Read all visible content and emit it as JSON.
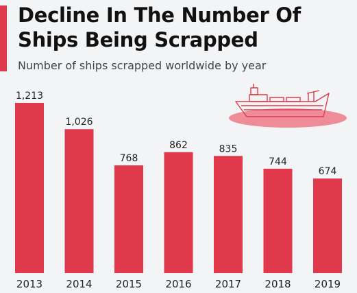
{
  "header": {
    "title": "Decline In The Number Of Ships Being Scrapped",
    "subtitle": "Number of ships scrapped worldwide by year"
  },
  "colors": {
    "bar": "#e0394b",
    "accent": "#e0394b",
    "ship_water": "#ee8d98",
    "background": "#f2f4f6"
  },
  "illustration": {
    "icon": "ship-icon"
  },
  "chart_data": {
    "type": "bar",
    "title": "Decline In The Number Of Ships Being Scrapped",
    "subtitle": "Number of ships scrapped worldwide by year",
    "categories": [
      "2013",
      "2014",
      "2015",
      "2016",
      "2017",
      "2018",
      "2019"
    ],
    "values": [
      1213,
      1026,
      768,
      862,
      835,
      744,
      674
    ],
    "value_labels": [
      "1,213",
      "1,026",
      "768",
      "862",
      "835",
      "744",
      "674"
    ],
    "xlabel": "",
    "ylabel": "",
    "ylim": [
      0,
      1213
    ],
    "grid": false,
    "legend": "none"
  }
}
